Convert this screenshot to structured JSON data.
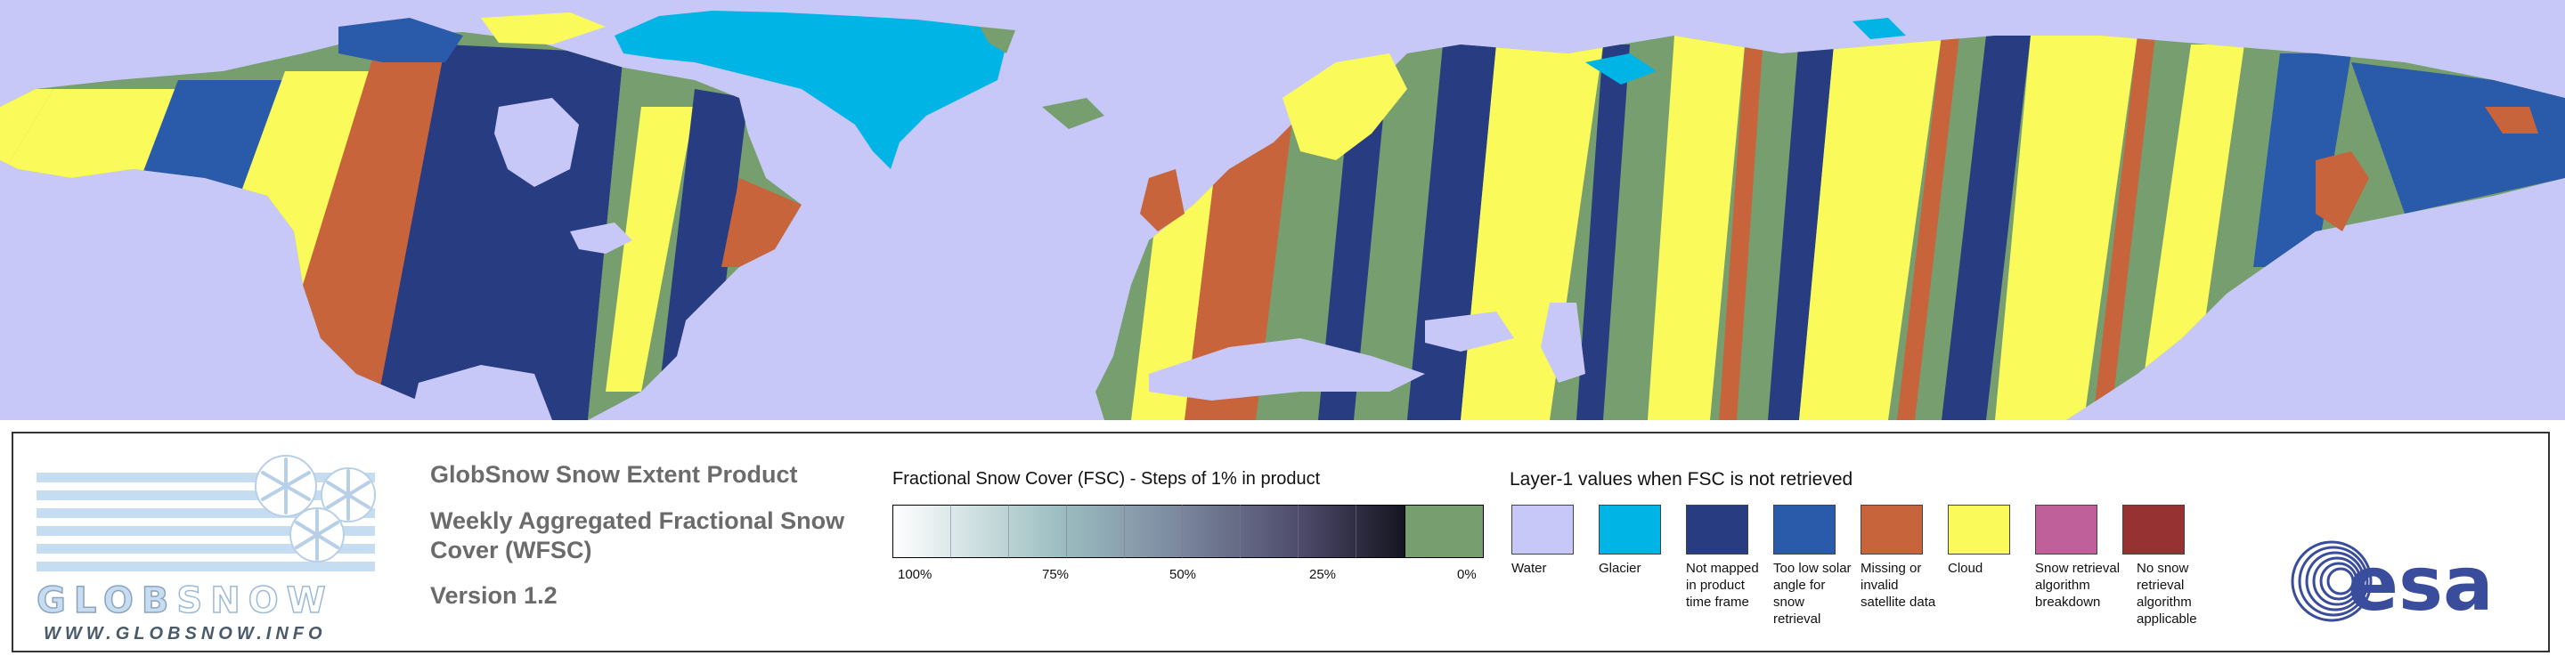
{
  "map": {
    "colors": {
      "water": "#c8c8f8",
      "glacier": "#00b4e6",
      "not_mapped": "#283c82",
      "low_solar": "#2a5aaa",
      "missing": "#c8643c",
      "cloud": "#fafa5a",
      "snow_free": "#779e6e"
    }
  },
  "logo": {
    "wordmark_glob": "GLOB",
    "wordmark_snow": "SNOW",
    "website": "WWW.GLOBSNOW.INFO"
  },
  "titles": {
    "product": "GlobSnow Snow Extent Product",
    "subtitle": "Weekly Aggregated Fractional Snow Cover (WFSC)",
    "version": "Version 1.2"
  },
  "fsc_legend": {
    "title": "Fractional Snow Cover (FSC) - Steps of 1% in product",
    "labels": [
      "100%",
      "75%",
      "50%",
      "25%",
      "0%"
    ]
  },
  "layer1_legend": {
    "title": "Layer-1 values when FSC is not retrieved",
    "items": [
      {
        "label": "Water",
        "color": "#c8c8f8"
      },
      {
        "label": "Glacier",
        "color": "#00b4e6"
      },
      {
        "label": "Not mapped in product time frame",
        "color": "#283c82"
      },
      {
        "label": "Too low solar angle for snow retrieval",
        "color": "#2a5aaa"
      },
      {
        "label": "Missing or invalid satellite data",
        "color": "#c8643c"
      },
      {
        "label": "Cloud",
        "color": "#fafa5a"
      },
      {
        "label": "Snow retrieval algorithm breakdown",
        "color": "#c0609a"
      },
      {
        "label": "No snow retrieval algorithm applicable",
        "color": "#963232"
      }
    ]
  },
  "esa_logo": {
    "text": "esa"
  }
}
